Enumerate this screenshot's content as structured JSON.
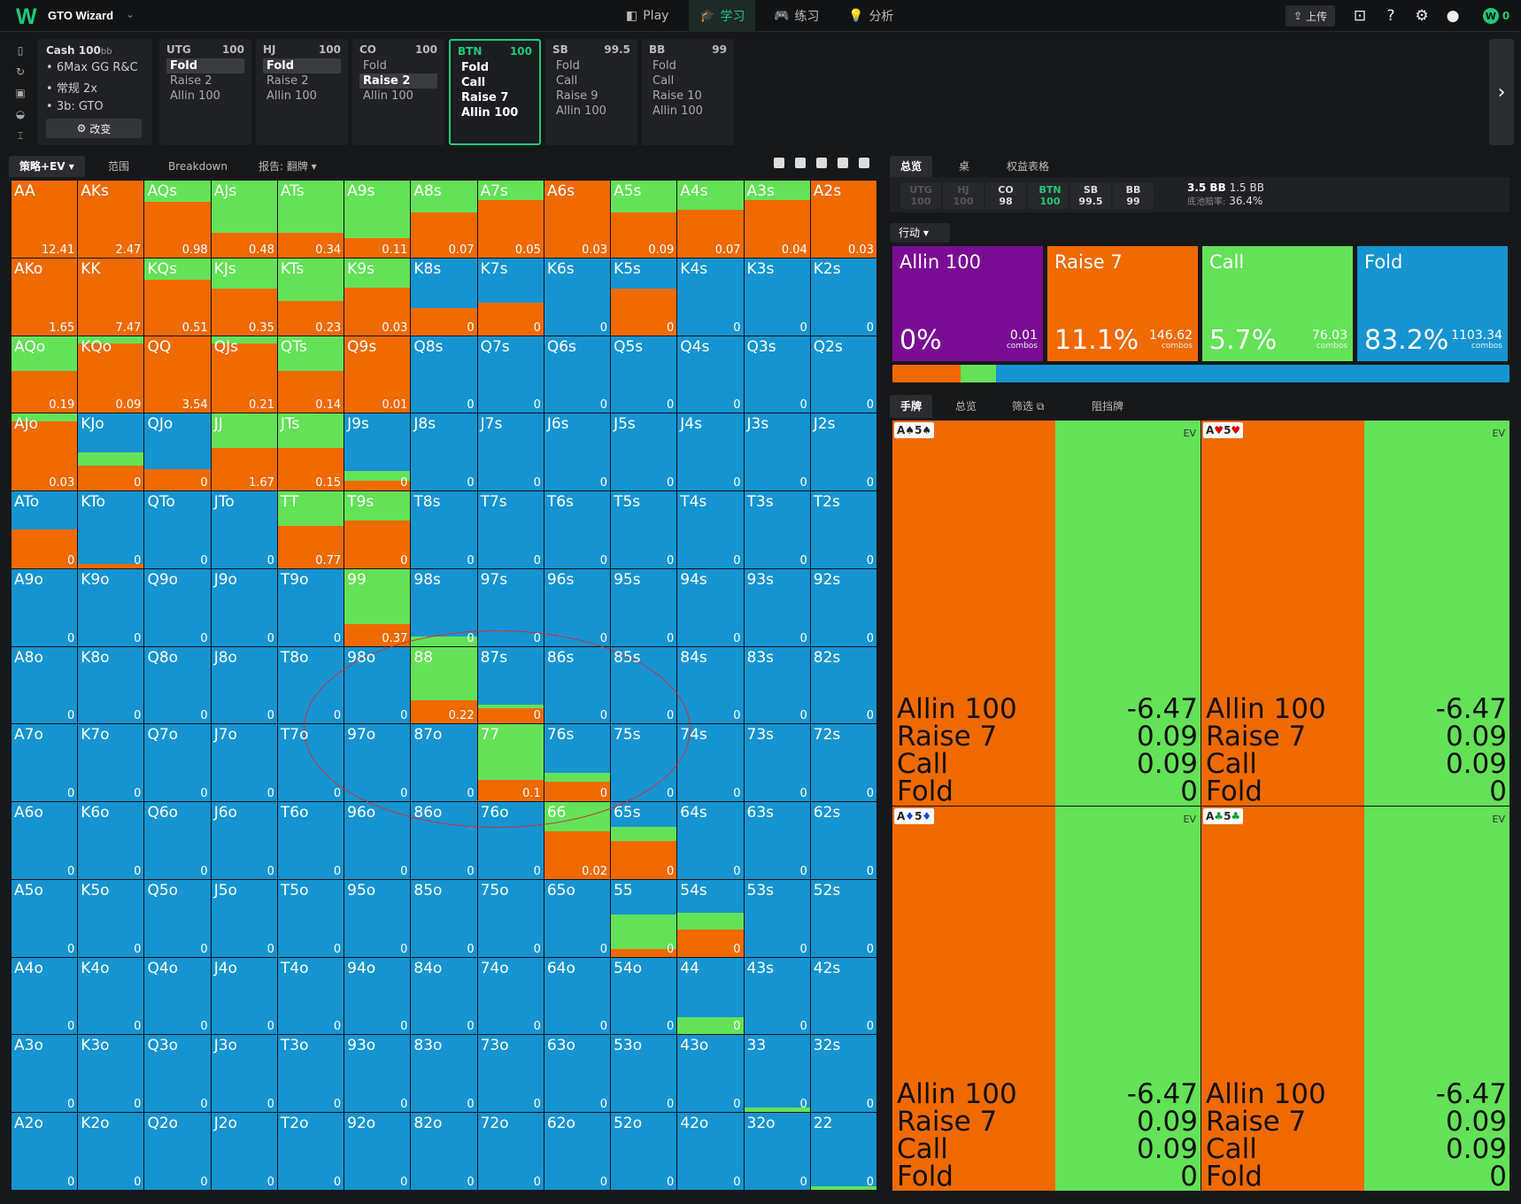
{
  "app": {
    "logo": "W",
    "title": "GTO Wizard"
  },
  "nav": [
    {
      "icon": "play-icon",
      "label": "Play"
    },
    {
      "icon": "learn-icon",
      "label": "学习"
    },
    {
      "icon": "practice-icon",
      "label": "练习"
    },
    {
      "icon": "analyze-icon",
      "label": "分析"
    }
  ],
  "topright": {
    "upload": "上传",
    "coins": "0"
  },
  "game": {
    "title": "Cash",
    "stack": "100",
    "stack_unit": "bb",
    "lines": [
      "6Max GG R&C",
      "常规 2x",
      "3b: GTO"
    ],
    "change": "改变"
  },
  "positions": [
    {
      "name": "UTG",
      "stack": "100",
      "actions": [
        "Fold",
        "Raise 2",
        "Allin 100"
      ],
      "selected": 0
    },
    {
      "name": "HJ",
      "stack": "100",
      "actions": [
        "Fold",
        "Raise 2",
        "Allin 100"
      ],
      "selected": 0
    },
    {
      "name": "CO",
      "stack": "100",
      "actions": [
        "Fold",
        "Raise 2",
        "Allin 100"
      ],
      "selected": 1
    },
    {
      "name": "BTN",
      "stack": "100",
      "actions": [
        "Fold",
        "Call",
        "Raise 7",
        "Allin 100"
      ],
      "selected": -1,
      "active": true
    },
    {
      "name": "SB",
      "stack": "99.5",
      "actions": [
        "Fold",
        "Call",
        "Raise 9",
        "Allin 100"
      ],
      "selected": -1
    },
    {
      "name": "BB",
      "stack": "99",
      "actions": [
        "Fold",
        "Call",
        "Raise 10",
        "Allin 100"
      ],
      "selected": -1
    }
  ],
  "left_tabs": [
    "策略+EV",
    "范围",
    "Breakdown",
    "报告: 翻牌"
  ],
  "right_tabs": [
    "总览",
    "桌",
    "权益表格"
  ],
  "seat_chips": [
    {
      "name": "UTG",
      "stack": "100",
      "state": "dim"
    },
    {
      "name": "HJ",
      "stack": "100",
      "state": "dim"
    },
    {
      "name": "CO",
      "stack": "98",
      "state": "normal"
    },
    {
      "name": "BTN",
      "stack": "100",
      "state": "act"
    },
    {
      "name": "SB",
      "stack": "99.5",
      "state": "normal"
    },
    {
      "name": "BB",
      "stack": "99",
      "state": "normal"
    }
  ],
  "pot": {
    "pot": "3.5 BB",
    "call": "1.5 BB",
    "odds_label": "底池赔率:",
    "odds": "36.4%"
  },
  "action_dropdown": "行动",
  "actions": [
    {
      "name": "Allin 100",
      "pct": "0%",
      "combos": "0.01",
      "color": "#7a0c94"
    },
    {
      "name": "Raise 7",
      "pct": "11.1%",
      "combos": "146.62",
      "color": "#f06a00"
    },
    {
      "name": "Call",
      "pct": "5.7%",
      "combos": "76.03",
      "color": "#63e257"
    },
    {
      "name": "Fold",
      "pct": "83.2%",
      "combos": "1103.34",
      "color": "#1594d1"
    }
  ],
  "combos_word": "combos",
  "freq_bar": [
    {
      "color": "#f06a00",
      "value": 11.1
    },
    {
      "color": "#63e257",
      "value": 5.7
    },
    {
      "color": "#1594d1",
      "value": 83.2
    }
  ],
  "hand_tabs": [
    "手牌",
    "总览",
    "筛选",
    "阻挡牌"
  ],
  "hand_cards": [
    {
      "rank1": "A",
      "suit1": "♠",
      "cls1": "s",
      "rank2": "5",
      "suit2": "♠",
      "cls2": "s"
    },
    {
      "rank1": "A",
      "suit1": "♥",
      "cls1": "h",
      "rank2": "5",
      "suit2": "♥",
      "cls2": "h"
    },
    {
      "rank1": "A",
      "suit1": "♦",
      "cls1": "d",
      "rank2": "5",
      "suit2": "♦",
      "cls2": "d"
    },
    {
      "rank1": "A",
      "suit1": "♣",
      "cls1": "c",
      "rank2": "5",
      "suit2": "♣",
      "cls2": "c"
    }
  ],
  "hand_ev_label": "EV",
  "hand_ev_rows": [
    [
      "Allin 100",
      "-6.47"
    ],
    [
      "Raise 7",
      "0.09"
    ],
    [
      "Call",
      "0.09"
    ],
    [
      "Fold",
      "0"
    ]
  ],
  "matrix": {
    "colors": {
      "raise": "#f06a00",
      "call": "#63e257",
      "fold": "#1594d1"
    },
    "hands": [
      [
        "AA",
        "AKs",
        "AQs",
        "AJs",
        "ATs",
        "A9s",
        "A8s",
        "A7s",
        "A6s",
        "A5s",
        "A4s",
        "A3s",
        "A2s"
      ],
      [
        "AKo",
        "KK",
        "KQs",
        "KJs",
        "KTs",
        "K9s",
        "K8s",
        "K7s",
        "K6s",
        "K5s",
        "K4s",
        "K3s",
        "K2s"
      ],
      [
        "AQo",
        "KQo",
        "QQ",
        "QJs",
        "QTs",
        "Q9s",
        "Q8s",
        "Q7s",
        "Q6s",
        "Q5s",
        "Q4s",
        "Q3s",
        "Q2s"
      ],
      [
        "AJo",
        "KJo",
        "QJo",
        "JJ",
        "JTs",
        "J9s",
        "J8s",
        "J7s",
        "J6s",
        "J5s",
        "J4s",
        "J3s",
        "J2s"
      ],
      [
        "ATo",
        "KTo",
        "QTo",
        "JTo",
        "TT",
        "T9s",
        "T8s",
        "T7s",
        "T6s",
        "T5s",
        "T4s",
        "T3s",
        "T2s"
      ],
      [
        "A9o",
        "K9o",
        "Q9o",
        "J9o",
        "T9o",
        "99",
        "98s",
        "97s",
        "96s",
        "95s",
        "94s",
        "93s",
        "92s"
      ],
      [
        "A8o",
        "K8o",
        "Q8o",
        "J8o",
        "T8o",
        "98o",
        "88",
        "87s",
        "86s",
        "85s",
        "84s",
        "83s",
        "82s"
      ],
      [
        "A7o",
        "K7o",
        "Q7o",
        "J7o",
        "T7o",
        "97o",
        "87o",
        "77",
        "76s",
        "75s",
        "74s",
        "73s",
        "72s"
      ],
      [
        "A6o",
        "K6o",
        "Q6o",
        "J6o",
        "T6o",
        "96o",
        "86o",
        "76o",
        "66",
        "65s",
        "64s",
        "63s",
        "62s"
      ],
      [
        "A5o",
        "K5o",
        "Q5o",
        "J5o",
        "T5o",
        "95o",
        "85o",
        "75o",
        "65o",
        "55",
        "54s",
        "53s",
        "52s"
      ],
      [
        "A4o",
        "K4o",
        "Q4o",
        "J4o",
        "T4o",
        "94o",
        "84o",
        "74o",
        "64o",
        "54o",
        "44",
        "43s",
        "42s"
      ],
      [
        "A3o",
        "K3o",
        "Q3o",
        "J3o",
        "T3o",
        "93o",
        "83o",
        "73o",
        "63o",
        "53o",
        "43o",
        "33",
        "32s"
      ],
      [
        "A2o",
        "K2o",
        "Q2o",
        "J2o",
        "T2o",
        "92o",
        "82o",
        "72o",
        "62o",
        "52o",
        "42o",
        "32o",
        "22"
      ]
    ],
    "ev": [
      [
        "12.41",
        "2.47",
        "0.98",
        "0.48",
        "0.34",
        "0.11",
        "0.07",
        "0.05",
        "0.03",
        "0.09",
        "0.07",
        "0.04",
        "0.03"
      ],
      [
        "1.65",
        "7.47",
        "0.51",
        "0.35",
        "0.23",
        "0.03",
        "0",
        "0",
        "0",
        "0",
        "0",
        "0",
        "0"
      ],
      [
        "0.19",
        "0.09",
        "3.54",
        "0.21",
        "0.14",
        "0.01",
        "0",
        "0",
        "0",
        "0",
        "0",
        "0",
        "0"
      ],
      [
        "0.03",
        "0",
        "0",
        "1.67",
        "0.15",
        "0",
        "0",
        "0",
        "0",
        "0",
        "0",
        "0",
        "0"
      ],
      [
        "0",
        "0",
        "0",
        "0",
        "0.77",
        "0",
        "0",
        "0",
        "0",
        "0",
        "0",
        "0",
        "0"
      ],
      [
        "0",
        "0",
        "0",
        "0",
        "0",
        "0.37",
        "0",
        "0",
        "0",
        "0",
        "0",
        "0",
        "0"
      ],
      [
        "0",
        "0",
        "0",
        "0",
        "0",
        "0",
        "0.22",
        "0",
        "0",
        "0",
        "0",
        "0",
        "0"
      ],
      [
        "0",
        "0",
        "0",
        "0",
        "0",
        "0",
        "0",
        "0.1",
        "0",
        "0",
        "0",
        "0",
        "0"
      ],
      [
        "0",
        "0",
        "0",
        "0",
        "0",
        "0",
        "0",
        "0",
        "0.02",
        "0",
        "0",
        "0",
        "0"
      ],
      [
        "0",
        "0",
        "0",
        "0",
        "0",
        "0",
        "0",
        "0",
        "0",
        "0",
        "0",
        "0",
        "0"
      ],
      [
        "0",
        "0",
        "0",
        "0",
        "0",
        "0",
        "0",
        "0",
        "0",
        "0",
        "0",
        "0",
        "0"
      ],
      [
        "0",
        "0",
        "0",
        "0",
        "0",
        "0",
        "0",
        "0",
        "0",
        "0",
        "0",
        "0",
        "0"
      ],
      [
        "0",
        "0",
        "0",
        "0",
        "0",
        "0",
        "0",
        "0",
        "0",
        "0",
        "0",
        "0",
        "0"
      ]
    ],
    "freqs": [
      [
        [
          1,
          0
        ],
        [
          1,
          0
        ],
        [
          0.72,
          0.28
        ],
        [
          0.32,
          0.68
        ],
        [
          0.32,
          0.68
        ],
        [
          0.25,
          0.75
        ],
        [
          0.58,
          0.42
        ],
        [
          0.75,
          0.25
        ],
        [
          1,
          0
        ],
        [
          0.58,
          0.42
        ],
        [
          0.62,
          0.38
        ],
        [
          0.75,
          0.25
        ],
        [
          1,
          0
        ]
      ],
      [
        [
          1,
          0
        ],
        [
          1,
          0
        ],
        [
          0.72,
          0.28
        ],
        [
          0.6,
          0.4
        ],
        [
          0.45,
          0.55
        ],
        [
          0.62,
          0.38
        ],
        [
          0.35,
          0
        ],
        [
          0.42,
          0
        ],
        [
          0,
          0
        ],
        [
          0.6,
          0
        ],
        [
          0,
          0
        ],
        [
          0,
          0
        ],
        [
          0,
          0
        ]
      ],
      [
        [
          0.55,
          0.45
        ],
        [
          0.9,
          0.1
        ],
        [
          1,
          0
        ],
        [
          0.9,
          0.1
        ],
        [
          0.55,
          0.45
        ],
        [
          1,
          0
        ],
        [
          0,
          0
        ],
        [
          0,
          0
        ],
        [
          0,
          0
        ],
        [
          0,
          0
        ],
        [
          0,
          0
        ],
        [
          0,
          0
        ],
        [
          0,
          0
        ]
      ],
      [
        [
          0.9,
          0.1
        ],
        [
          0.32,
          0.18
        ],
        [
          0.28,
          0
        ],
        [
          0.55,
          0.45
        ],
        [
          0.55,
          0.45
        ],
        [
          0.13,
          0.12
        ],
        [
          0,
          0
        ],
        [
          0,
          0
        ],
        [
          0,
          0
        ],
        [
          0,
          0
        ],
        [
          0,
          0
        ],
        [
          0,
          0
        ],
        [
          0,
          0
        ]
      ],
      [
        [
          0.5,
          0
        ],
        [
          0.06,
          0
        ],
        [
          0,
          0
        ],
        [
          0,
          0
        ],
        [
          0.55,
          0.45
        ],
        [
          0.62,
          0.38
        ],
        [
          0,
          0
        ],
        [
          0,
          0
        ],
        [
          0,
          0
        ],
        [
          0,
          0
        ],
        [
          0,
          0
        ],
        [
          0,
          0
        ],
        [
          0,
          0
        ]
      ],
      [
        [
          0,
          0
        ],
        [
          0,
          0
        ],
        [
          0,
          0
        ],
        [
          0,
          0
        ],
        [
          0,
          0
        ],
        [
          0.28,
          0.72
        ],
        [
          0,
          0.12
        ],
        [
          0,
          0
        ],
        [
          0,
          0
        ],
        [
          0,
          0
        ],
        [
          0,
          0
        ],
        [
          0,
          0
        ],
        [
          0,
          0
        ]
      ],
      [
        [
          0,
          0
        ],
        [
          0,
          0
        ],
        [
          0,
          0
        ],
        [
          0,
          0
        ],
        [
          0,
          0
        ],
        [
          0,
          0
        ],
        [
          0.3,
          0.7
        ],
        [
          0.2,
          0.05
        ],
        [
          0,
          0
        ],
        [
          0,
          0
        ],
        [
          0,
          0
        ],
        [
          0,
          0
        ],
        [
          0,
          0
        ]
      ],
      [
        [
          0,
          0
        ],
        [
          0,
          0
        ],
        [
          0,
          0
        ],
        [
          0,
          0
        ],
        [
          0,
          0
        ],
        [
          0,
          0
        ],
        [
          0,
          0
        ],
        [
          0.28,
          0.72
        ],
        [
          0.25,
          0.12
        ],
        [
          0,
          0
        ],
        [
          0,
          0
        ],
        [
          0,
          0
        ],
        [
          0,
          0
        ]
      ],
      [
        [
          0,
          0
        ],
        [
          0,
          0
        ],
        [
          0,
          0
        ],
        [
          0,
          0
        ],
        [
          0,
          0
        ],
        [
          0,
          0
        ],
        [
          0,
          0
        ],
        [
          0,
          0
        ],
        [
          0.62,
          0.38
        ],
        [
          0.5,
          0.18
        ],
        [
          0,
          0
        ],
        [
          0,
          0
        ],
        [
          0,
          0
        ]
      ],
      [
        [
          0,
          0
        ],
        [
          0,
          0
        ],
        [
          0,
          0
        ],
        [
          0,
          0
        ],
        [
          0,
          0
        ],
        [
          0,
          0
        ],
        [
          0,
          0
        ],
        [
          0,
          0
        ],
        [
          0,
          0
        ],
        [
          0.1,
          0.45
        ],
        [
          0.35,
          0.22
        ],
        [
          0,
          0
        ],
        [
          0,
          0
        ]
      ],
      [
        [
          0,
          0
        ],
        [
          0,
          0
        ],
        [
          0,
          0
        ],
        [
          0,
          0
        ],
        [
          0,
          0
        ],
        [
          0,
          0
        ],
        [
          0,
          0
        ],
        [
          0,
          0
        ],
        [
          0,
          0
        ],
        [
          0,
          0
        ],
        [
          0,
          0.22
        ],
        [
          0,
          0
        ],
        [
          0,
          0
        ]
      ],
      [
        [
          0,
          0
        ],
        [
          0,
          0
        ],
        [
          0,
          0
        ],
        [
          0,
          0
        ],
        [
          0,
          0
        ],
        [
          0,
          0
        ],
        [
          0,
          0
        ],
        [
          0,
          0
        ],
        [
          0,
          0
        ],
        [
          0,
          0
        ],
        [
          0,
          0
        ],
        [
          0,
          0.06
        ],
        [
          0,
          0
        ]
      ],
      [
        [
          0,
          0
        ],
        [
          0,
          0
        ],
        [
          0,
          0
        ],
        [
          0,
          0
        ],
        [
          0,
          0
        ],
        [
          0,
          0
        ],
        [
          0,
          0
        ],
        [
          0,
          0
        ],
        [
          0,
          0
        ],
        [
          0,
          0
        ],
        [
          0,
          0
        ],
        [
          0,
          0
        ],
        [
          0,
          0.05
        ]
      ]
    ]
  }
}
